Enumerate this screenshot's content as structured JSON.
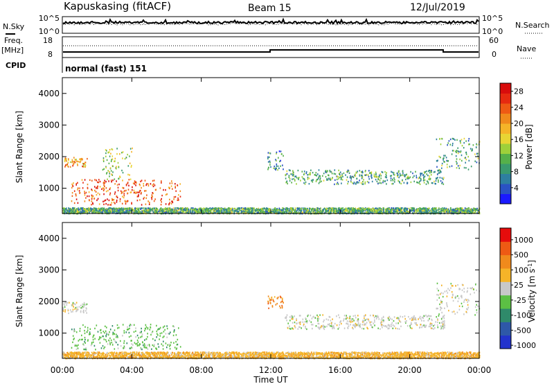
{
  "header": {
    "station": "Kapuskasing (fitACF)",
    "beam": "Beam 15",
    "date": "12/Jul/2019"
  },
  "sky_panel": {
    "left_label": "N.Sky",
    "right_label": "N.Search",
    "ticks": [
      "10^5",
      "10^0"
    ]
  },
  "freq_panel": {
    "left_label_top": "Freq.",
    "left_label_bottom": "[MHz]",
    "left_ticks": [
      "18",
      "8"
    ],
    "right_label": "Nave",
    "right_ticks": [
      "60",
      "0"
    ]
  },
  "cpid": {
    "label": "CPID",
    "mode": "normal (fast) 151"
  },
  "x_axis": {
    "label": "Time UT",
    "ticks": [
      "00:00",
      "04:00",
      "08:00",
      "12:00",
      "16:00",
      "20:00",
      "00:00"
    ],
    "range_hours": [
      0,
      24
    ]
  },
  "chart_data": [
    {
      "type": "heatmap",
      "title": "",
      "xlabel": "Time UT",
      "ylabel": "Slant Range [km]",
      "x_ticks": [
        "00:00",
        "04:00",
        "08:00",
        "12:00",
        "16:00",
        "20:00",
        "00:00"
      ],
      "y_ticks": [
        "1000",
        "2000",
        "3000",
        "4000"
      ],
      "y_range_km": [
        200,
        4500
      ],
      "colorbar": {
        "label": "Power [dB]",
        "ticks": [
          "4",
          "8",
          "12",
          "16",
          "20",
          "24",
          "28"
        ],
        "range": [
          0,
          30
        ],
        "colors": [
          "#1a1aff",
          "#2a52c4",
          "#2e7fa0",
          "#3a9a6e",
          "#55b04a",
          "#9ed03a",
          "#e8d534",
          "#f5b428",
          "#f08a1c",
          "#ee5a14",
          "#e62a10",
          "#d80c0c"
        ]
      },
      "echo_regions": [
        {
          "name": "ground-scatter-near-range",
          "t": [
            0.0,
            24.0
          ],
          "r": [
            220,
            400
          ],
          "value": 10
        },
        {
          "name": "early-morning-band",
          "t": [
            0.0,
            1.4
          ],
          "r": [
            1700,
            2000
          ],
          "value": 20
        },
        {
          "name": "morning-arc",
          "t": [
            0.5,
            6.8
          ],
          "r": [
            500,
            1300
          ],
          "value": 24
        },
        {
          "name": "morning-arc-upper",
          "t": [
            2.3,
            4.0
          ],
          "r": [
            1300,
            2300
          ],
          "value": 14
        },
        {
          "name": "afternoon-band",
          "t": [
            12.8,
            22.0
          ],
          "r": [
            1150,
            1600
          ],
          "value": 10
        },
        {
          "name": "midday-patch",
          "t": [
            11.8,
            12.7
          ],
          "r": [
            1600,
            2200
          ],
          "value": 8
        },
        {
          "name": "evening-rise",
          "t": [
            21.5,
            24.0
          ],
          "r": [
            1600,
            2600
          ],
          "value": 10
        }
      ]
    },
    {
      "type": "heatmap",
      "title": "",
      "xlabel": "Time UT",
      "ylabel": "Slant Range [km]",
      "x_ticks": [
        "00:00",
        "04:00",
        "08:00",
        "12:00",
        "16:00",
        "20:00",
        "00:00"
      ],
      "y_ticks": [
        "1000",
        "2000",
        "3000",
        "4000"
      ],
      "y_range_km": [
        200,
        4500
      ],
      "colorbar": {
        "label": "Velocity [m s^-1]",
        "ticks": [
          "1000",
          "500",
          "100",
          "25",
          "-25",
          "-100",
          "-500",
          "-1000"
        ],
        "colors": [
          "#2233cc",
          "#2e58a8",
          "#2f8a6a",
          "#5cc044",
          "#c8c8c8",
          "#f5b428",
          "#f08a1c",
          "#ee5a14",
          "#e60c0c"
        ]
      },
      "echo_regions": [
        {
          "name": "ground-scatter-near-range",
          "t": [
            0.0,
            24.0
          ],
          "r": [
            220,
            420
          ],
          "value": -100
        },
        {
          "name": "early-morning-band",
          "t": [
            0.0,
            1.4
          ],
          "r": [
            1650,
            2000
          ],
          "value": 0
        },
        {
          "name": "morning-arc",
          "t": [
            0.5,
            6.8
          ],
          "r": [
            500,
            1300
          ],
          "value": 100
        },
        {
          "name": "afternoon-band",
          "t": [
            12.8,
            22.0
          ],
          "r": [
            1150,
            1600
          ],
          "value": 0
        },
        {
          "name": "midday-patch",
          "t": [
            11.8,
            12.7
          ],
          "r": [
            1800,
            2200
          ],
          "value": -500
        },
        {
          "name": "evening-rise",
          "t": [
            21.5,
            24.0
          ],
          "r": [
            1600,
            2600
          ],
          "value": 0
        }
      ]
    }
  ]
}
